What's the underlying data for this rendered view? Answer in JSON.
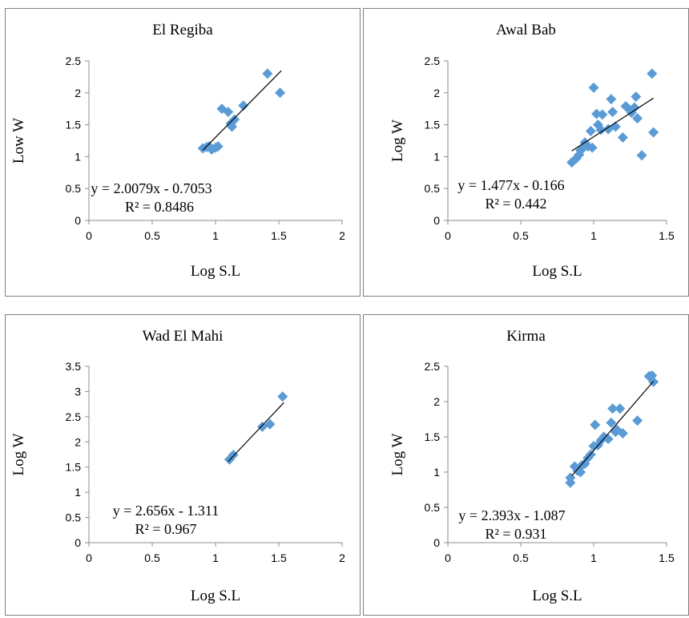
{
  "chart_data": [
    {
      "type": "scatter",
      "title": "El Regiba",
      "xlabel": "Log S.L",
      "ylabel": "Low W",
      "xlim": [
        0,
        2
      ],
      "ylim": [
        0,
        2.5
      ],
      "x_ticks": [
        "0",
        "0.5",
        "1",
        "1.5",
        "2"
      ],
      "y_ticks": [
        "0",
        "0.5",
        "1",
        "1.5",
        "2",
        "2.5"
      ],
      "grid": false,
      "marker_color": "#5b9bd5",
      "trendline": {
        "slope": 2.0079,
        "intercept": -0.7053,
        "x_range": [
          0.9,
          1.52
        ]
      },
      "equation": "y = 2.0079x - 0.7053",
      "r_squared": "R² = 0.8486",
      "points": [
        {
          "x": 0.9,
          "y": 1.13
        },
        {
          "x": 0.93,
          "y": 1.15
        },
        {
          "x": 0.95,
          "y": 1.16
        },
        {
          "x": 0.97,
          "y": 1.11
        },
        {
          "x": 1.0,
          "y": 1.14
        },
        {
          "x": 1.02,
          "y": 1.16
        },
        {
          "x": 1.05,
          "y": 1.75
        },
        {
          "x": 1.1,
          "y": 1.7
        },
        {
          "x": 1.12,
          "y": 1.52
        },
        {
          "x": 1.13,
          "y": 1.47
        },
        {
          "x": 1.15,
          "y": 1.58
        },
        {
          "x": 1.22,
          "y": 1.8
        },
        {
          "x": 1.41,
          "y": 2.3
        },
        {
          "x": 1.51,
          "y": 2.0
        }
      ]
    },
    {
      "type": "scatter",
      "title": "Awal Bab",
      "xlabel": "Log S.L",
      "ylabel": "Log W",
      "xlim": [
        0,
        1.5
      ],
      "ylim": [
        0,
        2.5
      ],
      "x_ticks": [
        "0",
        "0.5",
        "1",
        "1.5"
      ],
      "y_ticks": [
        "0",
        "0.5",
        "1",
        "1.5",
        "2",
        "2.5"
      ],
      "grid": false,
      "marker_color": "#5b9bd5",
      "trendline": {
        "slope": 1.477,
        "intercept": -0.166,
        "x_range": [
          0.85,
          1.41
        ]
      },
      "equation": "y = 1.477x - 0.166",
      "r_squared": "R² = 0.442",
      "points": [
        {
          "x": 0.85,
          "y": 0.91
        },
        {
          "x": 0.88,
          "y": 0.97
        },
        {
          "x": 0.9,
          "y": 1.03
        },
        {
          "x": 0.91,
          "y": 1.1
        },
        {
          "x": 0.93,
          "y": 1.14
        },
        {
          "x": 0.94,
          "y": 1.22
        },
        {
          "x": 0.96,
          "y": 1.16
        },
        {
          "x": 0.98,
          "y": 1.4
        },
        {
          "x": 0.99,
          "y": 1.14
        },
        {
          "x": 1.0,
          "y": 2.08
        },
        {
          "x": 1.02,
          "y": 1.67
        },
        {
          "x": 1.03,
          "y": 1.5
        },
        {
          "x": 1.05,
          "y": 1.42
        },
        {
          "x": 1.06,
          "y": 1.66
        },
        {
          "x": 1.1,
          "y": 1.43
        },
        {
          "x": 1.12,
          "y": 1.9
        },
        {
          "x": 1.13,
          "y": 1.7
        },
        {
          "x": 1.15,
          "y": 1.47
        },
        {
          "x": 1.2,
          "y": 1.3
        },
        {
          "x": 1.22,
          "y": 1.79
        },
        {
          "x": 1.24,
          "y": 1.75
        },
        {
          "x": 1.26,
          "y": 1.69
        },
        {
          "x": 1.28,
          "y": 1.77
        },
        {
          "x": 1.29,
          "y": 1.94
        },
        {
          "x": 1.3,
          "y": 1.6
        },
        {
          "x": 1.33,
          "y": 1.02
        },
        {
          "x": 1.4,
          "y": 2.3
        },
        {
          "x": 1.41,
          "y": 1.38
        }
      ]
    },
    {
      "type": "scatter",
      "title": "Wad El Mahi",
      "xlabel": "Log S.L",
      "ylabel": "Log W",
      "xlim": [
        0,
        2
      ],
      "ylim": [
        0,
        3.5
      ],
      "x_ticks": [
        "0",
        "0.5",
        "1",
        "1.5",
        "2"
      ],
      "y_ticks": [
        "0",
        "0.5",
        "1",
        "1.5",
        "2",
        "2.5",
        "3",
        "3.5"
      ],
      "grid": false,
      "marker_color": "#5b9bd5",
      "trendline": {
        "slope": 2.656,
        "intercept": -1.311,
        "x_range": [
          1.1,
          1.54
        ]
      },
      "equation": "y = 2.656x - 1.311",
      "r_squared": "R² = 0.967",
      "points": [
        {
          "x": 1.11,
          "y": 1.65
        },
        {
          "x": 1.14,
          "y": 1.74
        },
        {
          "x": 1.37,
          "y": 2.3
        },
        {
          "x": 1.43,
          "y": 2.35
        },
        {
          "x": 1.53,
          "y": 2.9
        }
      ]
    },
    {
      "type": "scatter",
      "title": "Kirma",
      "xlabel": "Log S.L",
      "ylabel": "Log W",
      "xlim": [
        0,
        1.5
      ],
      "ylim": [
        0,
        2.5
      ],
      "x_ticks": [
        "0",
        "0.5",
        "1",
        "1.5"
      ],
      "y_ticks": [
        "0",
        "0.5",
        "1",
        "1.5",
        "2",
        "2.5"
      ],
      "grid": false,
      "marker_color": "#5b9bd5",
      "trendline": {
        "slope": 2.393,
        "intercept": -1.087,
        "x_range": [
          0.85,
          1.41
        ]
      },
      "equation": "y = 2.393x - 1.087",
      "r_squared": "R² = 0.931",
      "points": [
        {
          "x": 0.84,
          "y": 0.85
        },
        {
          "x": 0.84,
          "y": 0.92
        },
        {
          "x": 0.87,
          "y": 1.08
        },
        {
          "x": 0.89,
          "y": 1.02
        },
        {
          "x": 0.91,
          "y": 1.0
        },
        {
          "x": 0.92,
          "y": 1.1
        },
        {
          "x": 0.94,
          "y": 1.12
        },
        {
          "x": 0.96,
          "y": 1.2
        },
        {
          "x": 0.98,
          "y": 1.25
        },
        {
          "x": 1.0,
          "y": 1.37
        },
        {
          "x": 1.01,
          "y": 1.67
        },
        {
          "x": 1.03,
          "y": 1.38
        },
        {
          "x": 1.05,
          "y": 1.45
        },
        {
          "x": 1.07,
          "y": 1.5
        },
        {
          "x": 1.1,
          "y": 1.47
        },
        {
          "x": 1.12,
          "y": 1.7
        },
        {
          "x": 1.13,
          "y": 1.9
        },
        {
          "x": 1.15,
          "y": 1.57
        },
        {
          "x": 1.16,
          "y": 1.6
        },
        {
          "x": 1.18,
          "y": 1.9
        },
        {
          "x": 1.2,
          "y": 1.55
        },
        {
          "x": 1.3,
          "y": 1.73
        },
        {
          "x": 1.38,
          "y": 2.36
        },
        {
          "x": 1.4,
          "y": 2.37
        },
        {
          "x": 1.41,
          "y": 2.28
        }
      ]
    }
  ]
}
